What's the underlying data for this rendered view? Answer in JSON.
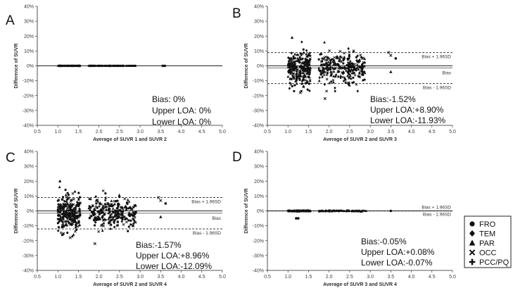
{
  "chart_data": [
    {
      "panel": "A",
      "type": "scatter",
      "xlabel": "Average of SUVR 1 and SUVR 2",
      "ylabel": "Difference of SUVR",
      "xlim": [
        0.5,
        5.0
      ],
      "ylim": [
        -40,
        40
      ],
      "xticks": [
        "0.5",
        "1.0",
        "1.5",
        "2.0",
        "2.5",
        "3.0",
        "3.5",
        "4.0",
        "4.5",
        "5.0"
      ],
      "yticks": [
        "40%",
        "30%",
        "20%",
        "10%",
        "0%",
        "-10%",
        "-20%",
        "-30%",
        "-40%"
      ],
      "bias": 0,
      "upper_loa": 0,
      "lower_loa": 0,
      "ref_lines": false,
      "spread": 0,
      "stats": [
        "Bias: 0%",
        "Upper LOA: 0%",
        "Lower LOA: 0%"
      ],
      "outliers": [
        {
          "x": 3.55,
          "y": 0,
          "marker": "FRO"
        },
        {
          "x": 3.6,
          "y": 0,
          "marker": "FRO"
        }
      ]
    },
    {
      "panel": "B",
      "type": "scatter",
      "xlabel": "Average of SUVR 2 and SUVR 3",
      "ylabel": "Difference of SUVR",
      "xlim": [
        0.5,
        5.0
      ],
      "ylim": [
        -40,
        40
      ],
      "xticks": [
        "0.5",
        "1.0",
        "1.5",
        "2.0",
        "2.5",
        "3.0",
        "3.5",
        "4.0",
        "4.5",
        "5.0"
      ],
      "yticks": [
        "40%",
        "30%",
        "20%",
        "10%",
        "0%",
        "-10%",
        "-20%",
        "-30%",
        "-40%"
      ],
      "bias": -1.52,
      "upper_loa": 8.9,
      "lower_loa": -11.93,
      "ref_lines": true,
      "spread": 5.5,
      "ref_labels": [
        "Bias + 1.96SD",
        "Bias",
        "Bias - 1.96SD"
      ],
      "stats": [
        "Bias:-1.52%",
        "Upper LOA:+8.90%",
        "Lower LOA:-11.93%"
      ],
      "outliers": [
        {
          "x": 3.45,
          "y": 9,
          "marker": "OCC"
        },
        {
          "x": 3.5,
          "y": 7,
          "marker": "OCC"
        },
        {
          "x": 3.62,
          "y": 5,
          "marker": "FRO"
        },
        {
          "x": 3.5,
          "y": -4,
          "marker": "PAR"
        },
        {
          "x": 1.1,
          "y": 19,
          "marker": "PAR"
        },
        {
          "x": 1.9,
          "y": -22,
          "marker": "OCC"
        },
        {
          "x": 1.3,
          "y": -18,
          "marker": "OCC"
        }
      ]
    },
    {
      "panel": "C",
      "type": "scatter",
      "xlabel": "Average of SUVR 2 and SUVR 4",
      "ylabel": "Difference of SUVR",
      "xlim": [
        0.5,
        5.0
      ],
      "ylim": [
        -40,
        40
      ],
      "xticks": [
        "0.5",
        "1.0",
        "1.5",
        "2.0",
        "2.5",
        "3.0",
        "3.5",
        "4.0",
        "4.5",
        "5.0"
      ],
      "yticks": [
        "40%",
        "30%",
        "20%",
        "10%",
        "0%",
        "-10%",
        "-20%",
        "-30%",
        "-40%"
      ],
      "bias": -1.57,
      "upper_loa": 8.96,
      "lower_loa": -12.09,
      "ref_lines": true,
      "spread": 5.5,
      "ref_labels": [
        "Bias + 1.96SD",
        "Bias",
        "Bias - 1.96SD"
      ],
      "stats": [
        "Bias:-1.57%",
        "Upper LOA:+8.96%",
        "Lower LOA:-12.09%"
      ],
      "outliers": [
        {
          "x": 3.45,
          "y": 9,
          "marker": "OCC"
        },
        {
          "x": 3.5,
          "y": 7,
          "marker": "OCC"
        },
        {
          "x": 3.62,
          "y": 5,
          "marker": "FRO"
        },
        {
          "x": 3.5,
          "y": -4,
          "marker": "PAR"
        },
        {
          "x": 1.05,
          "y": 20,
          "marker": "PAR"
        },
        {
          "x": 1.9,
          "y": -22,
          "marker": "OCC"
        },
        {
          "x": 1.3,
          "y": -18,
          "marker": "OCC"
        }
      ]
    },
    {
      "panel": "D",
      "type": "scatter",
      "xlabel": "Average of SUVR 3 and SUVR 4",
      "ylabel": "Difference of SUVR",
      "xlim": [
        0.5,
        5.0
      ],
      "ylim": [
        -40,
        40
      ],
      "xticks": [
        "0.5",
        "1.0",
        "1.5",
        "2.0",
        "2.5",
        "3.0",
        "3.5",
        "4.0",
        "4.5",
        "5.0"
      ],
      "yticks": [
        "40%",
        "30%",
        "20%",
        "10%",
        "0%",
        "-10%",
        "-20%",
        "-30%",
        "-40%"
      ],
      "bias": -0.05,
      "upper_loa": 0.08,
      "lower_loa": -0.07,
      "ref_lines": true,
      "spread": 0.2,
      "ref_labels": [
        "Bias + 1.96SD",
        "Bias - 1.96SD"
      ],
      "stats": [
        "Bias:-0.05%",
        "Upper LOA:+0.08%",
        "Lower LOA:-0.07%"
      ],
      "outliers": [
        {
          "x": 1.2,
          "y": -5,
          "marker": "FRO"
        },
        {
          "x": 1.25,
          "y": -5,
          "marker": "FRO"
        },
        {
          "x": 3.5,
          "y": 0,
          "marker": "FRO"
        }
      ]
    }
  ],
  "legend": [
    {
      "label": "FRO",
      "marker": "circle"
    },
    {
      "label": "TEM",
      "marker": "diamond"
    },
    {
      "label": "PAR",
      "marker": "triangle"
    },
    {
      "label": "OCC",
      "marker": "cross"
    },
    {
      "label": "PCC/PQ",
      "marker": "plus"
    }
  ],
  "colors": {
    "ink": "#111111",
    "axis": "#222222",
    "tick_text": "#404040",
    "border": "#222222"
  }
}
